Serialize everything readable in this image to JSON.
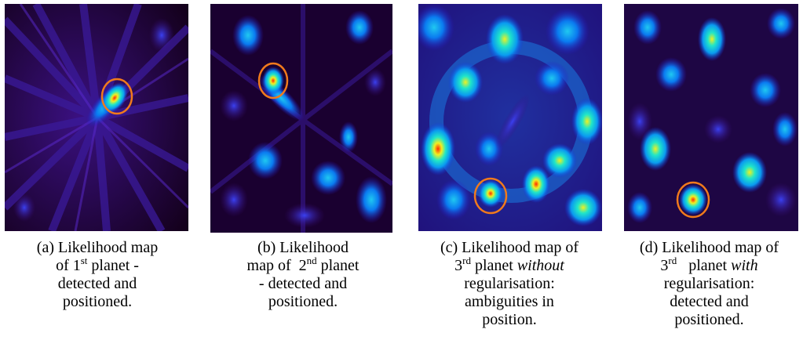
{
  "figure": {
    "panels": [
      {
        "id": "a",
        "caption_parts": [
          "(a) Likelihood map",
          "of 1",
          "st",
          " planet -",
          "detected and",
          "positioned."
        ]
      },
      {
        "id": "b",
        "caption_parts": [
          "(b) Likelihood",
          "map of  2",
          "nd",
          " planet",
          "- detected and",
          "positioned."
        ]
      },
      {
        "id": "c",
        "caption_parts": [
          "(c) Likelihood map of",
          "3",
          "rd",
          " planet ",
          "without",
          "regularisation:",
          "ambiguities in",
          "position."
        ]
      },
      {
        "id": "d",
        "caption_parts": [
          "(d) Likelihood map of",
          "3",
          "rd",
          "   planet ",
          "with",
          "regularisation:",
          "detected and",
          "positioned."
        ]
      }
    ],
    "colormap": [
      "#1a0022",
      "#3a0a78",
      "#1530e0",
      "#0a9af0",
      "#20e6c8",
      "#f0f020",
      "#ff2a00"
    ],
    "marker_color": "#f07a1c"
  }
}
